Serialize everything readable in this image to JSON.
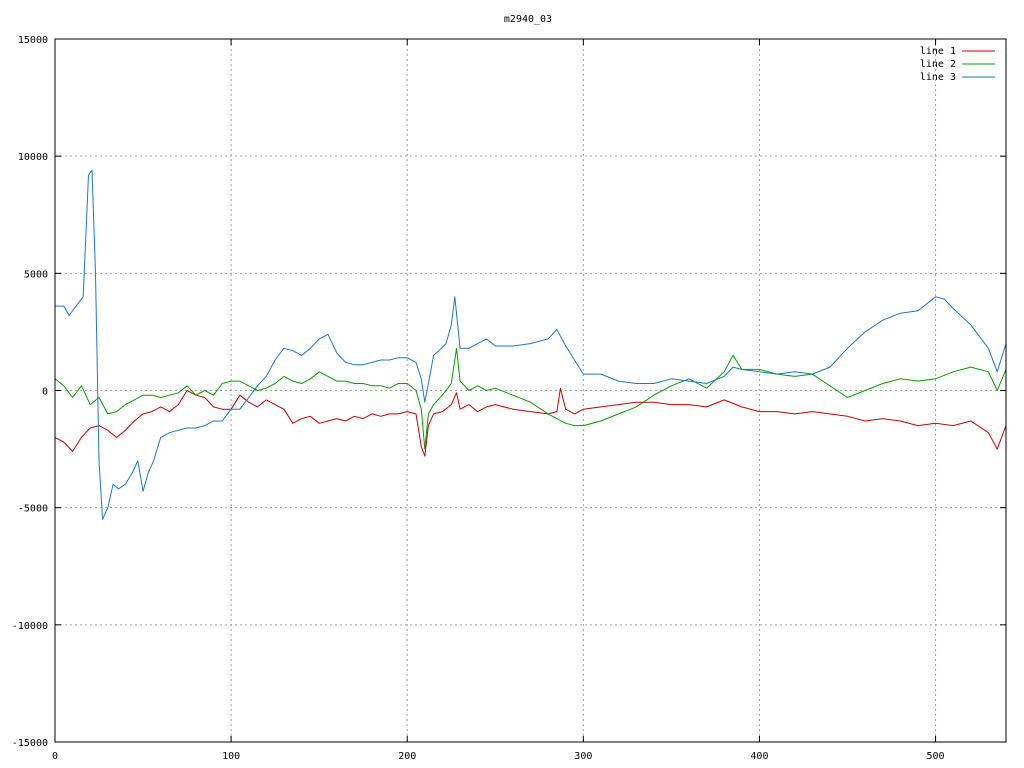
{
  "chart_data": {
    "type": "line",
    "title": "m2940_03",
    "xlabel": "",
    "ylabel": "",
    "xlim": [
      0,
      540
    ],
    "ylim": [
      -15000,
      15000
    ],
    "xticks": [
      0,
      100,
      200,
      300,
      400,
      500
    ],
    "yticks": [
      -15000,
      -10000,
      -5000,
      0,
      5000,
      10000,
      15000
    ],
    "grid": true,
    "legend_position": "top-right",
    "series": [
      {
        "name": "line 1",
        "color": "#cc0000",
        "x": [
          0,
          5,
          10,
          15,
          20,
          25,
          30,
          35,
          40,
          45,
          50,
          55,
          60,
          65,
          70,
          75,
          80,
          85,
          90,
          95,
          100,
          105,
          110,
          115,
          120,
          125,
          130,
          135,
          140,
          145,
          150,
          155,
          160,
          165,
          170,
          175,
          180,
          185,
          190,
          195,
          200,
          205,
          208,
          210,
          212,
          215,
          220,
          225,
          228,
          230,
          235,
          240,
          245,
          250,
          260,
          270,
          280,
          285,
          287,
          290,
          295,
          300,
          310,
          320,
          330,
          340,
          350,
          360,
          370,
          380,
          390,
          400,
          410,
          420,
          430,
          440,
          450,
          460,
          470,
          480,
          490,
          500,
          510,
          520,
          530,
          535,
          540
        ],
        "y": [
          -2000,
          -2200,
          -2600,
          -2000,
          -1600,
          -1500,
          -1700,
          -2000,
          -1700,
          -1300,
          -1000,
          -900,
          -700,
          -900,
          -600,
          0,
          -200,
          -300,
          -700,
          -800,
          -800,
          -200,
          -500,
          -700,
          -400,
          -600,
          -800,
          -1400,
          -1200,
          -1100,
          -1400,
          -1300,
          -1200,
          -1300,
          -1100,
          -1200,
          -1000,
          -1100,
          -1000,
          -1000,
          -900,
          -1000,
          -2400,
          -2800,
          -1500,
          -1000,
          -900,
          -600,
          -100,
          -800,
          -600,
          -900,
          -700,
          -600,
          -800,
          -900,
          -1000,
          -900,
          100,
          -800,
          -1000,
          -800,
          -700,
          -600,
          -500,
          -500,
          -600,
          -600,
          -700,
          -400,
          -700,
          -900,
          -900,
          -1000,
          -900,
          -1000,
          -1100,
          -1300,
          -1200,
          -1300,
          -1500,
          -1400,
          -1500,
          -1300,
          -1800,
          -2500,
          -1500
        ]
      },
      {
        "name": "line 2",
        "color": "#00a000",
        "x": [
          0,
          5,
          10,
          15,
          20,
          25,
          30,
          35,
          40,
          45,
          50,
          55,
          60,
          65,
          70,
          75,
          80,
          85,
          90,
          95,
          100,
          105,
          110,
          115,
          120,
          125,
          130,
          135,
          140,
          145,
          150,
          155,
          160,
          165,
          170,
          175,
          180,
          185,
          190,
          195,
          200,
          205,
          208,
          210,
          212,
          215,
          220,
          225,
          228,
          230,
          235,
          240,
          245,
          250,
          260,
          270,
          280,
          290,
          295,
          300,
          310,
          320,
          330,
          340,
          350,
          360,
          370,
          380,
          385,
          390,
          400,
          410,
          420,
          430,
          440,
          450,
          460,
          470,
          480,
          490,
          500,
          510,
          520,
          530,
          535,
          540
        ],
        "y": [
          500,
          200,
          -300,
          200,
          -600,
          -300,
          -1000,
          -900,
          -600,
          -400,
          -200,
          -200,
          -300,
          -200,
          -100,
          200,
          -200,
          0,
          -200,
          300,
          400,
          400,
          200,
          0,
          100,
          300,
          600,
          400,
          300,
          500,
          800,
          600,
          400,
          400,
          300,
          300,
          200,
          200,
          100,
          300,
          300,
          0,
          -800,
          -2500,
          -1000,
          -600,
          -200,
          300,
          1800,
          400,
          0,
          200,
          0,
          100,
          -200,
          -500,
          -1000,
          -1400,
          -1500,
          -1500,
          -1300,
          -1000,
          -700,
          -200,
          200,
          500,
          100,
          800,
          1500,
          900,
          900,
          700,
          600,
          700,
          200,
          -300,
          0,
          300,
          500,
          400,
          500,
          800,
          1000,
          800,
          0,
          900
        ]
      },
      {
        "name": "line 3",
        "color": "#1f77c8",
        "x": [
          0,
          5,
          8,
          12,
          16,
          19,
          21,
          23,
          25,
          27,
          30,
          33,
          36,
          40,
          44,
          47,
          50,
          53,
          56,
          60,
          65,
          70,
          75,
          80,
          85,
          90,
          95,
          100,
          105,
          110,
          115,
          120,
          125,
          130,
          135,
          140,
          145,
          150,
          155,
          160,
          165,
          170,
          175,
          180,
          185,
          190,
          195,
          200,
          205,
          208,
          210,
          212,
          215,
          218,
          222,
          225,
          227,
          230,
          235,
          240,
          245,
          250,
          260,
          270,
          280,
          285,
          290,
          300,
          310,
          320,
          330,
          340,
          350,
          360,
          370,
          380,
          385,
          390,
          400,
          410,
          420,
          430,
          440,
          450,
          460,
          470,
          480,
          490,
          500,
          505,
          510,
          520,
          530,
          535,
          540
        ],
        "y": [
          3600,
          3600,
          3200,
          3600,
          4000,
          9200,
          9400,
          5000,
          -3000,
          -5500,
          -5000,
          -4000,
          -4200,
          -4000,
          -3500,
          -3000,
          -4300,
          -3500,
          -3000,
          -2000,
          -1800,
          -1700,
          -1600,
          -1600,
          -1500,
          -1300,
          -1300,
          -800,
          -800,
          -300,
          200,
          600,
          1300,
          1800,
          1700,
          1500,
          1800,
          2200,
          2400,
          1600,
          1200,
          1100,
          1100,
          1200,
          1300,
          1300,
          1400,
          1400,
          1200,
          500,
          -500,
          300,
          1500,
          1700,
          2000,
          2800,
          4000,
          1800,
          1800,
          2000,
          2200,
          1900,
          1900,
          2000,
          2200,
          2600,
          1900,
          700,
          700,
          400,
          300,
          300,
          500,
          400,
          300,
          600,
          1000,
          900,
          800,
          700,
          800,
          700,
          1000,
          1800,
          2500,
          3000,
          3300,
          3400,
          4000,
          3900,
          3500,
          2800,
          1800,
          800,
          2000
        ]
      }
    ]
  }
}
